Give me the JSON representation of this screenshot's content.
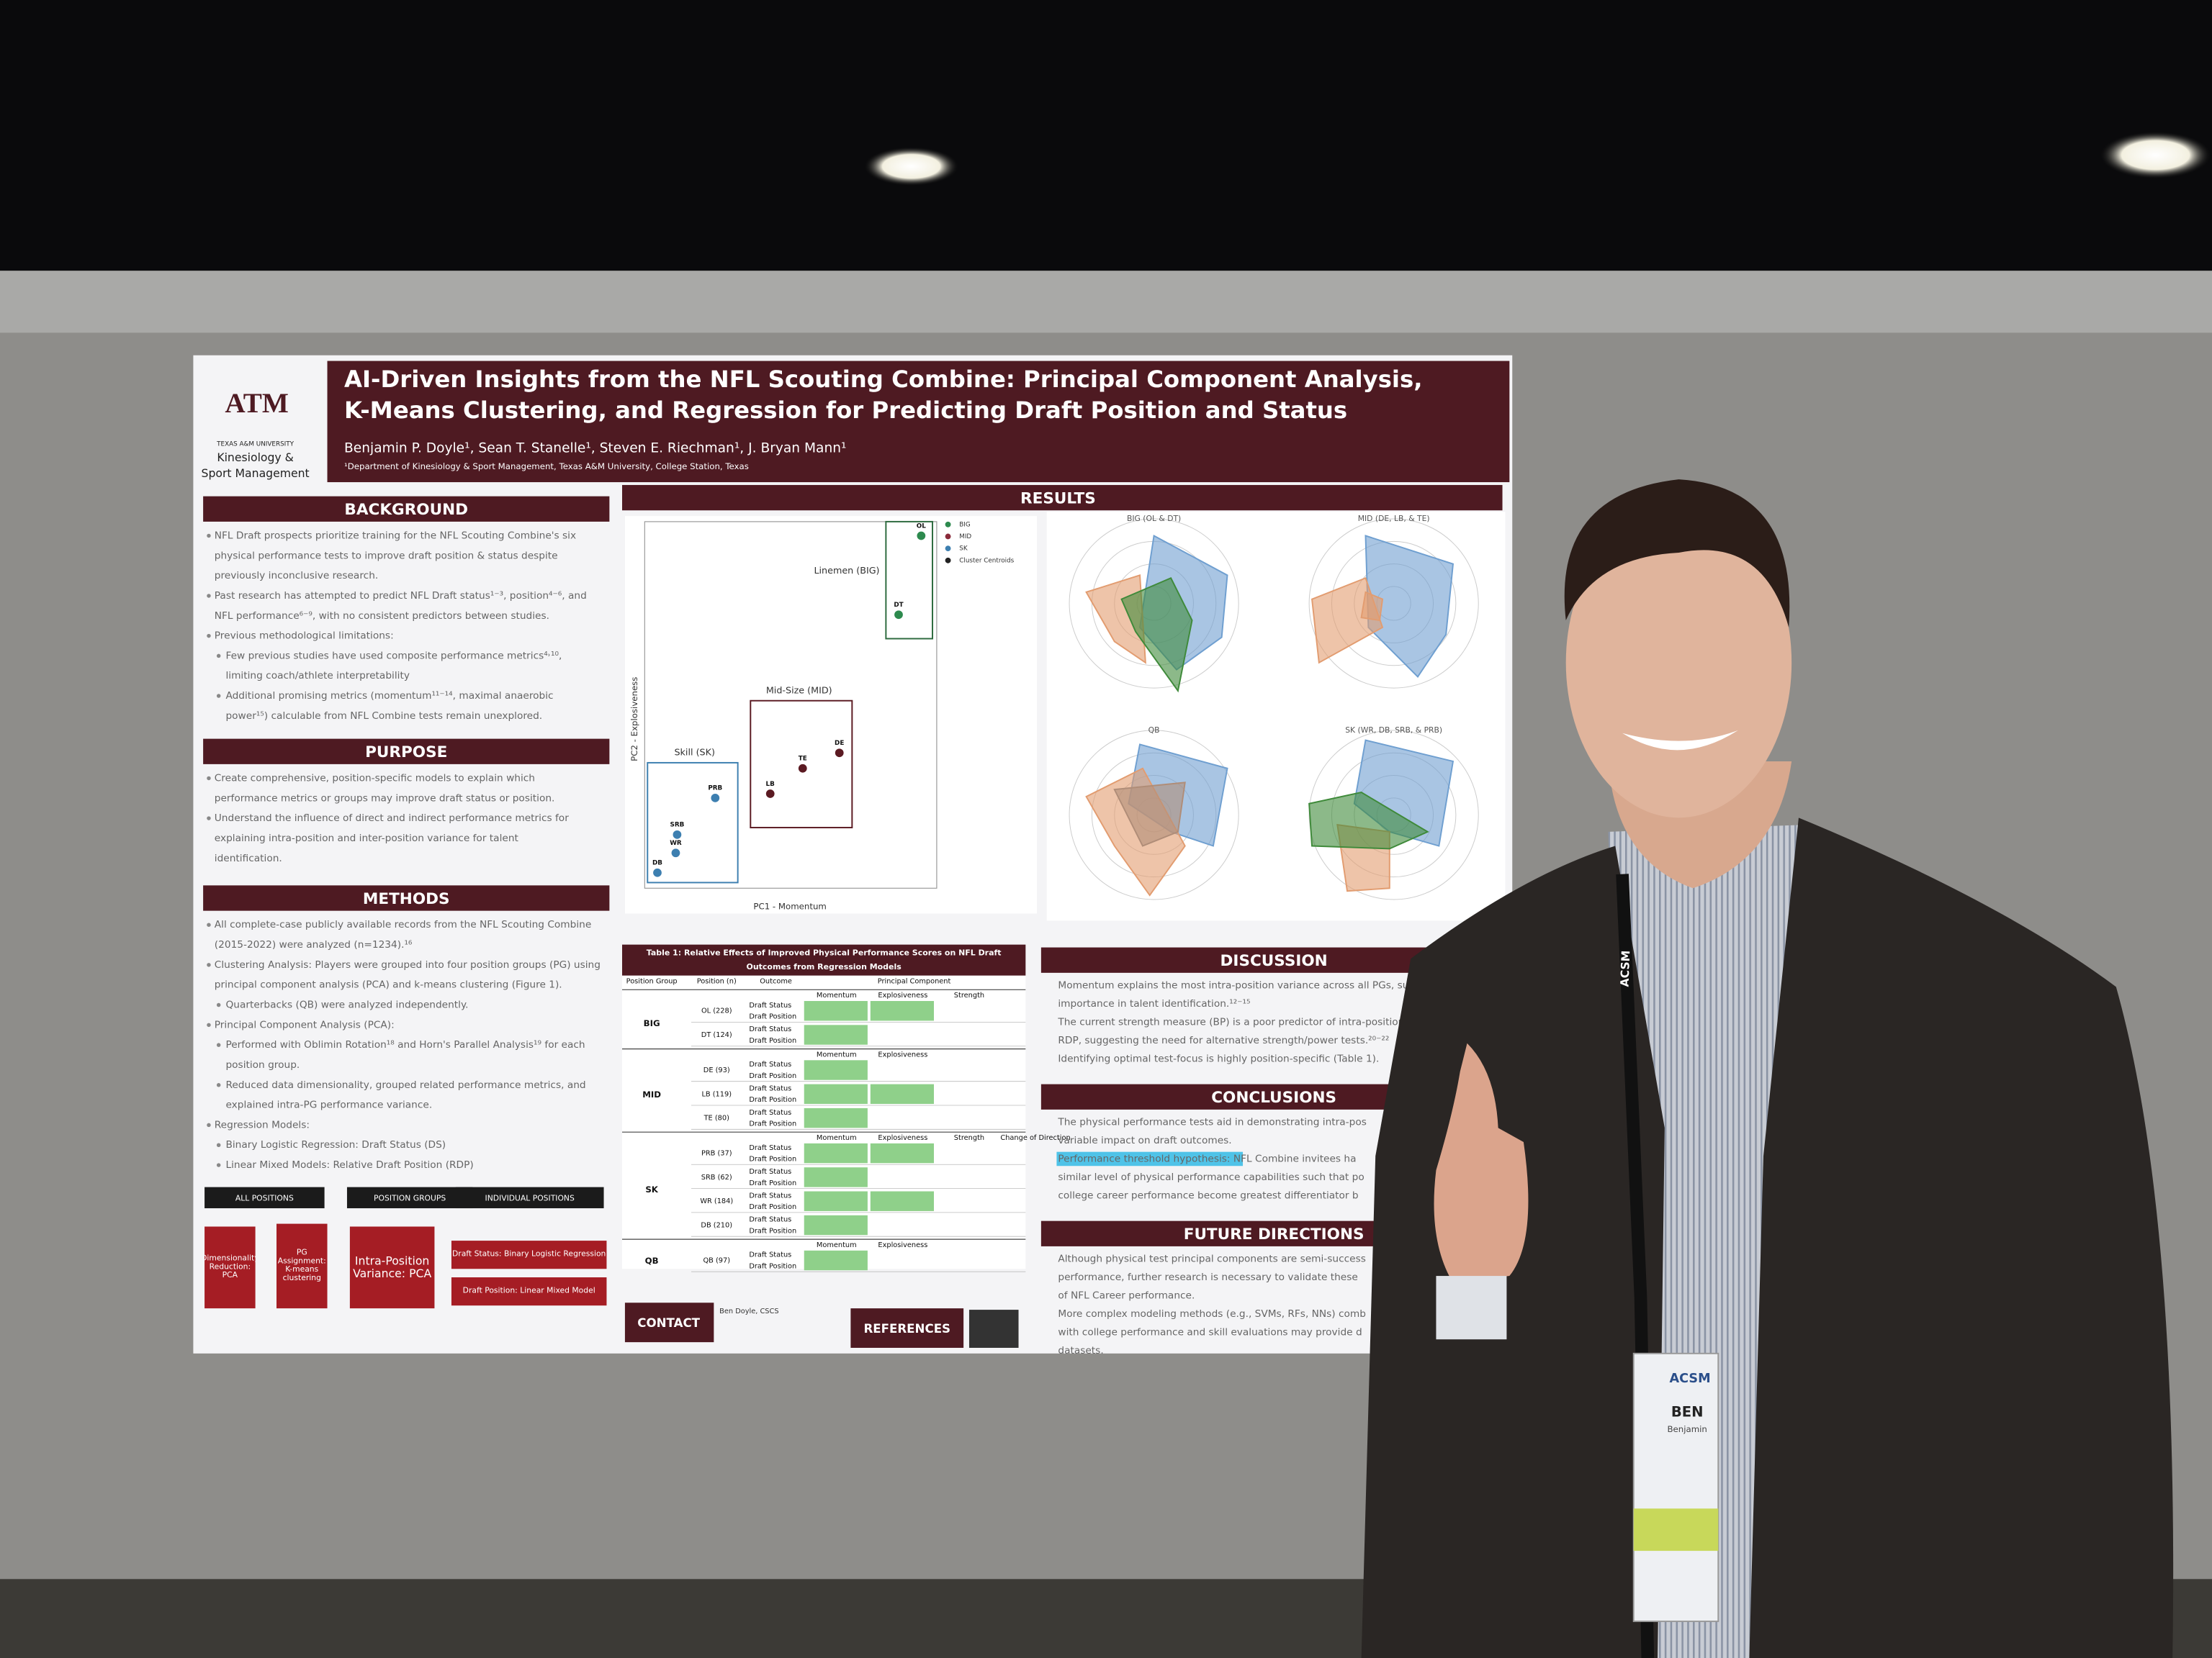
{
  "poster": {
    "university": "TEXAS A&M UNIVERSITY",
    "logo": "ATM",
    "department_1": "Kinesiology &",
    "department_2": "Sport Management",
    "title_1": "AI-Driven Insights from the NFL Scouting Combine: Principal Component Analysis,",
    "title_2": "K-Means Clustering, and Regression for Predicting Draft Position and Status",
    "authors": "Benjamin P. Doyle¹, Sean T. Stanelle¹, Steven E. Riechman¹, J. Bryan Mann¹",
    "affiliation": "¹Department of Kinesiology & Sport Management, Texas A&M University, College Station, Texas",
    "left_sections": [
      {
        "heading": "BACKGROUND",
        "lines": [
          "NFL Draft prospects prioritize training for the NFL Scouting Combine's six",
          "physical performance tests to improve draft position & status despite",
          "previously inconclusive research.",
          "Past research has attempted to predict NFL Draft status¹⁻³, position⁴⁻⁶, and",
          "NFL performance⁶⁻⁹, with no consistent predictors between studies.",
          "Previous methodological limitations:",
          "Few previous studies have used composite performance metrics⁴˒¹⁰,",
          "limiting coach/athlete interpretability",
          "Additional promising metrics (momentum¹¹⁻¹⁴, maximal anaerobic",
          "power¹⁵) calculable from NFL Combine tests remain unexplored."
        ]
      },
      {
        "heading": "PURPOSE",
        "lines": [
          "Create comprehensive, position-specific models to explain which",
          "performance metrics or groups may improve draft status or position.",
          "Understand the influence of direct and indirect performance metrics for",
          "explaining intra-position and inter-position variance for talent",
          "identification."
        ]
      },
      {
        "heading": "METHODS",
        "lines": [
          "All complete-case publicly available records from the NFL Scouting Combine",
          "(2015-2022) were analyzed (n=1234).¹⁶",
          "Clustering Analysis: Players were grouped into four position groups (PG) using",
          "principal component analysis (PCA) and k-means clustering (Figure 1).",
          "Quarterbacks (QB) were analyzed independently.",
          "Principal Component Analysis (PCA):",
          "Performed with Oblimin Rotation¹⁸ and Horn's Parallel Analysis¹⁹ for each",
          "position group.",
          "Reduced data dimensionality, grouped related performance metrics, and",
          "explained intra-PG performance variance.",
          "Regression Models:",
          "Binary Logistic Regression: Draft Status (DS)",
          "Linear Mixed Models: Relative Draft Position (RDP)"
        ]
      }
    ],
    "flow": {
      "stages": [
        "ALL POSITIONS",
        "POSITION GROUPS",
        "INDIVIDUAL POSITIONS"
      ],
      "boxes": [
        "Dimensionality Reduction: PCA",
        "PG Assignment: K-means clustering",
        "Intra-Position Variance: PCA",
        "Draft Status: Binary Logistic Regression",
        "Draft Position: Linear Mixed Model"
      ]
    },
    "results": {
      "heading": "RESULTS",
      "scatter": {
        "x_label": "PC1 - Momentum",
        "y_label": "PC2 - Explosiveness",
        "clusters": [
          "Linemen (BIG)",
          "Mid-Size (MID)",
          "Skill (SK)"
        ],
        "legend": [
          "BIG",
          "MID",
          "SK",
          "Cluster Centroids"
        ],
        "points": [
          "OL",
          "DT",
          "DE",
          "TE",
          "LB",
          "PRB",
          "SRB",
          "WR",
          "DB"
        ]
      },
      "radar_titles": [
        "BIG (OL & DT)",
        "MID (DE, LB, & TE)",
        "QB",
        "SK (WR, DB, SRB, & PRB)"
      ]
    },
    "table": {
      "title_1": "Table 1: Relative Effects of Improved Physical Performance Scores on NFL Draft",
      "title_2": "Outcomes from Regression Models",
      "headers": [
        "Position Group",
        "Position (n)",
        "Outcome",
        "Principal Component"
      ],
      "components": [
        "Momentum",
        "Explosiveness",
        "Strength",
        "Change of Direction"
      ],
      "groups": [
        {
          "name": "BIG",
          "positions": [
            "OL (228)",
            "DT (124)"
          ]
        },
        {
          "name": "MID",
          "positions": [
            "DE (93)",
            "LB (119)",
            "TE (80)"
          ]
        },
        {
          "name": "SK",
          "positions": [
            "PRB (37)",
            "SRB (62)",
            "WR (184)",
            "DB (210)"
          ]
        },
        {
          "name": "QB",
          "positions": [
            "QB (97)"
          ]
        }
      ],
      "outcomes": [
        "Draft Status",
        "Draft Position"
      ]
    },
    "right_sections": [
      {
        "heading": "DISCUSSION",
        "lines": [
          "Momentum explains the most intra-position variance across all PGs, su",
          "importance in talent identification.¹²⁻¹⁵",
          "The current strength measure (BP) is a poor predictor of intra-position",
          "RDP, suggesting the need for alternative strength/power tests.²⁰⁻²²",
          "Identifying optimal test-focus is highly position-specific (Table 1)."
        ]
      },
      {
        "heading": "CONCLUSIONS",
        "lines": [
          "The physical performance tests aid in demonstrating intra-pos",
          "variable impact on draft outcomes.",
          "Performance threshold hypothesis: NFL Combine invitees ha",
          "similar level of physical performance capabilities such that po",
          "college career performance become greatest differentiator b"
        ]
      },
      {
        "heading": "FUTURE DIRECTIONS",
        "lines": [
          "Although physical test principal components are semi-success",
          "performance, further research is necessary to validate these",
          "of NFL Career performance.",
          "More complex modeling methods (e.g., SVMs, RFs, NNs) comb",
          "with college performance and skill evaluations may provide d",
          "datasets."
        ]
      }
    ],
    "contact": "CONTACT",
    "contact_name": "Ben Doyle, CSCS",
    "references": "REFERENCES"
  },
  "badge": {
    "lanyard": "ACSM",
    "org": "ACSM",
    "name": "BEN",
    "full_name": "Benjamin"
  }
}
